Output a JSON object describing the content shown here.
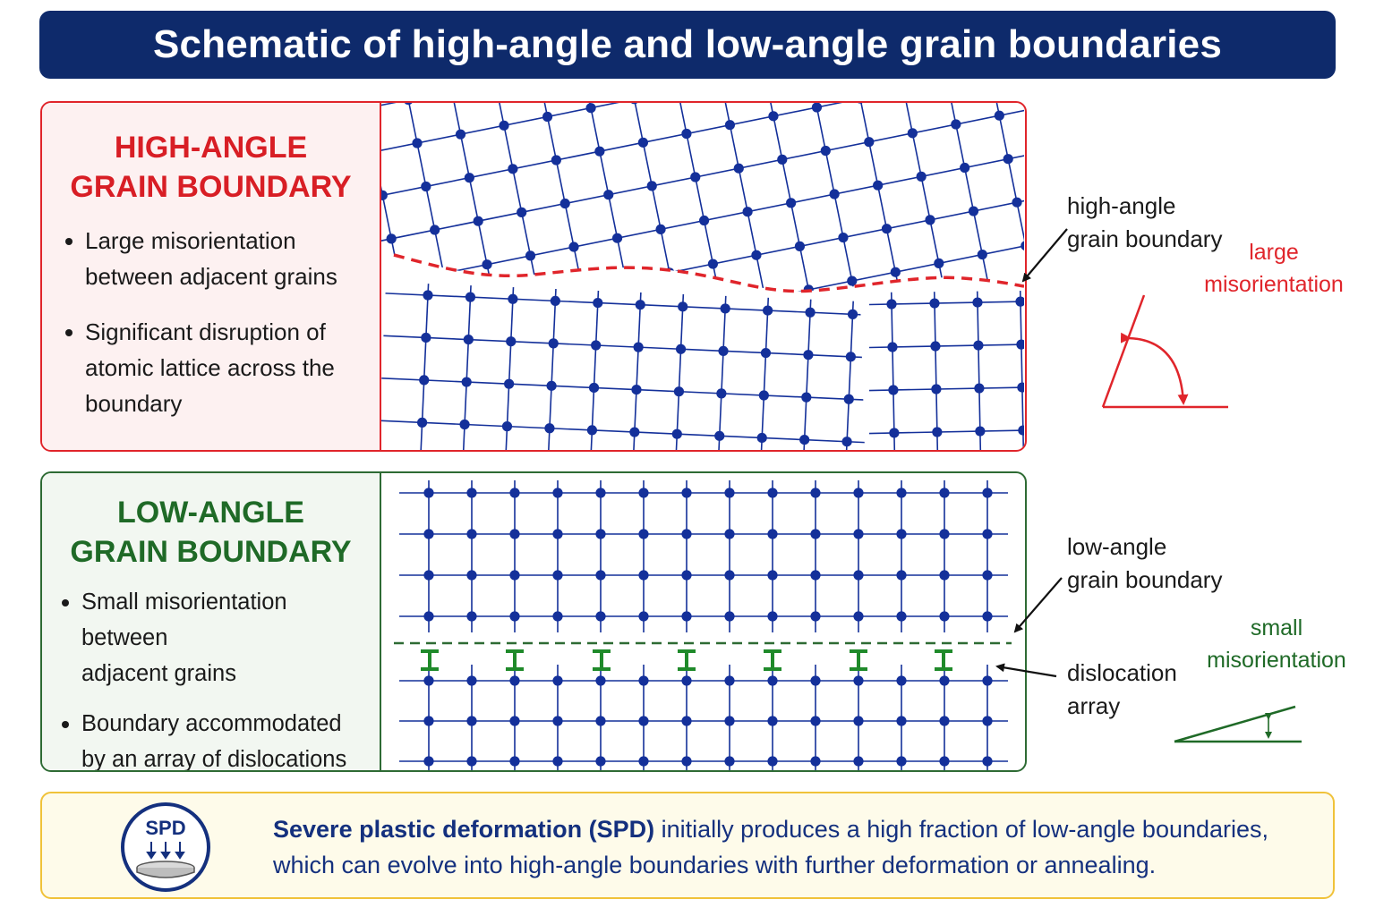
{
  "title": "Schematic of high-angle and low-angle grain boundaries",
  "high_angle": {
    "heading_line1": "HIGH-ANGLE",
    "heading_line2": "GRAIN BOUNDARY",
    "bullet1_line1": "Large misorientation",
    "bullet1_line2": "between adjacent grains",
    "bullet2_line1": "Significant disruption of",
    "bullet2_line2": "atomic lattice across the",
    "bullet2_line3": "boundary",
    "annotation_line1": "high-angle",
    "annotation_line2": "grain boundary",
    "misorientation_line1": "large",
    "misorientation_line2": "misorientation"
  },
  "low_angle": {
    "heading_line1": "LOW-ANGLE",
    "heading_line2": "GRAIN BOUNDARY",
    "bullet1_line1": "Small misorientation between",
    "bullet1_line2": "adjacent grains",
    "bullet2_line1": "Boundary accommodated",
    "bullet2_line2": "by an array of dislocations",
    "annotation_line1": "low-angle",
    "annotation_line2": "grain boundary",
    "dislocation_line1": "dislocation",
    "dislocation_line2": "array",
    "misorientation_line1": "small",
    "misorientation_line2": "misorientation"
  },
  "spd": {
    "icon_label": "SPD",
    "bold_text": "Severe plastic deformation (SPD)",
    "text_rest": " initially produces a high fraction of low-angle boundaries,",
    "text_line2": "which can evolve into high-angle boundaries with further deformation or annealing."
  },
  "colors": {
    "title_bg": "#0e2a6b",
    "high_red": "#e0252b",
    "low_green": "#2e6b34",
    "lattice_blue": "#14309a",
    "spd_border": "#f0c23a"
  }
}
